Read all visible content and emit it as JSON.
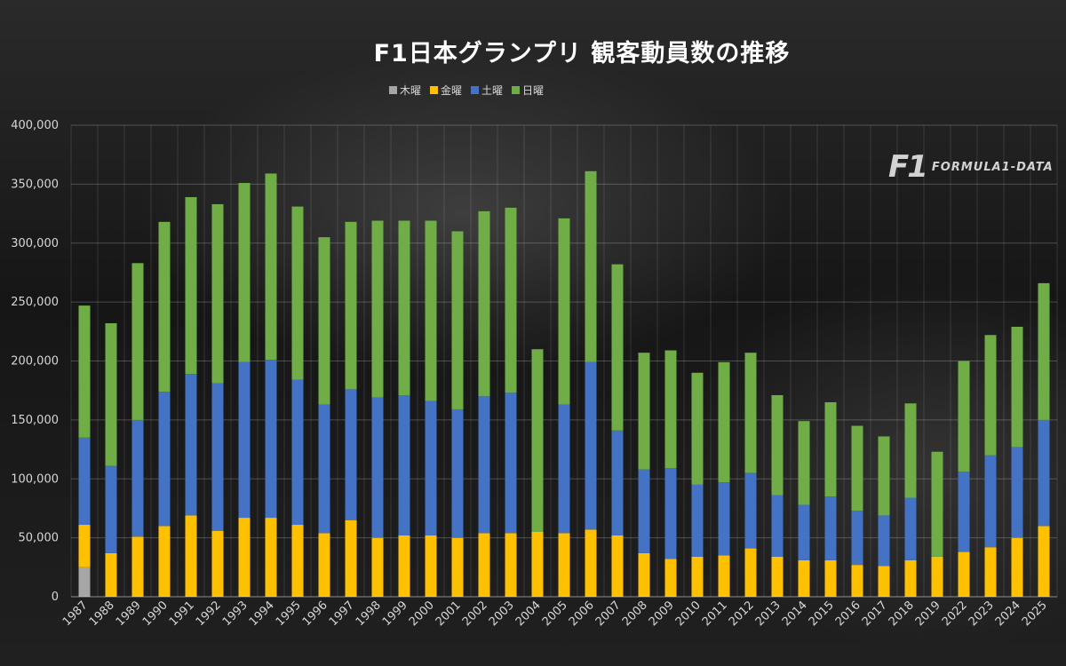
{
  "title": "F1日本グランプリ 観客動員数の推移",
  "watermark": {
    "mark": "F1",
    "text": "FORMULA1-DATA"
  },
  "legend": [
    {
      "label": "木曜",
      "color": "#a6a6a6"
    },
    {
      "label": "金曜",
      "color": "#ffc000"
    },
    {
      "label": "土曜",
      "color": "#4472c4"
    },
    {
      "label": "日曜",
      "color": "#70ad47"
    }
  ],
  "chart_data": {
    "type": "bar",
    "stacked": true,
    "title": "F1日本グランプリ 観客動員数の推移",
    "xlabel": "",
    "ylabel": "",
    "ylim": [
      0,
      400000
    ],
    "yticks": [
      0,
      50000,
      100000,
      150000,
      200000,
      250000,
      300000,
      350000,
      400000
    ],
    "ytick_labels": [
      "0",
      "50,000",
      "100,000",
      "150,000",
      "200,000",
      "250,000",
      "300,000",
      "350,000",
      "400,000"
    ],
    "grid": true,
    "legend_position": "top",
    "categories": [
      "1987",
      "1988",
      "1989",
      "1990",
      "1991",
      "1992",
      "1993",
      "1994",
      "1995",
      "1996",
      "1997",
      "1998",
      "1999",
      "2000",
      "2001",
      "2002",
      "2003",
      "2004",
      "2005",
      "2006",
      "2007",
      "2008",
      "2009",
      "2010",
      "2011",
      "2012",
      "2013",
      "2014",
      "2015",
      "2016",
      "2017",
      "2018",
      "2019",
      "2022",
      "2023",
      "2024",
      "2025"
    ],
    "series": [
      {
        "name": "木曜",
        "color": "#a6a6a6",
        "values": [
          25000,
          0,
          0,
          0,
          0,
          0,
          0,
          0,
          0,
          0,
          0,
          0,
          0,
          0,
          0,
          0,
          0,
          0,
          0,
          0,
          0,
          0,
          0,
          0,
          0,
          0,
          0,
          0,
          0,
          0,
          0,
          0,
          0,
          0,
          0,
          0,
          0
        ]
      },
      {
        "name": "金曜",
        "color": "#ffc000",
        "values": [
          36000,
          37000,
          51000,
          60000,
          69000,
          56000,
          67000,
          67000,
          61000,
          54000,
          65000,
          50000,
          52000,
          52000,
          50000,
          54000,
          54000,
          55000,
          54000,
          57000,
          52000,
          37000,
          32000,
          34000,
          35000,
          41000,
          34000,
          31000,
          31000,
          27000,
          26000,
          31000,
          34000,
          38000,
          42000,
          50000,
          60000
        ]
      },
      {
        "name": "土曜",
        "color": "#4472c4",
        "values": [
          74000,
          74000,
          99000,
          114000,
          120000,
          125000,
          132000,
          134000,
          123000,
          109000,
          111000,
          119000,
          119000,
          114000,
          109000,
          116000,
          119000,
          0,
          109000,
          142000,
          89000,
          71000,
          77000,
          61000,
          62000,
          64000,
          52000,
          47000,
          54000,
          46000,
          43000,
          53000,
          0,
          68000,
          78000,
          77000,
          90000
        ]
      },
      {
        "name": "日曜",
        "color": "#70ad47",
        "values": [
          112000,
          121000,
          133000,
          144000,
          150000,
          152000,
          152000,
          158000,
          147000,
          142000,
          142000,
          150000,
          148000,
          153000,
          151000,
          157000,
          157000,
          155000,
          158000,
          162000,
          141000,
          99000,
          100000,
          95000,
          102000,
          102000,
          85000,
          71000,
          80000,
          72000,
          67000,
          80000,
          89000,
          94000,
          102000,
          102000,
          116000
        ]
      }
    ]
  }
}
